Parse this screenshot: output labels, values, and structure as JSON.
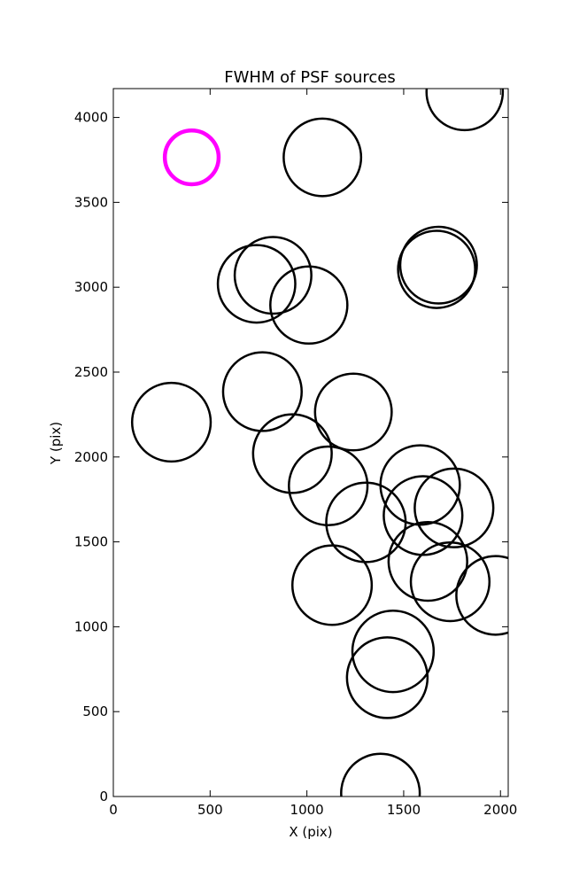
{
  "chart_data": {
    "type": "scatter",
    "title": "FWHM of PSF sources",
    "xlabel": "X (pix)",
    "ylabel": "Y (pix)",
    "xlim": [
      0,
      2040
    ],
    "ylim": [
      0,
      4170
    ],
    "xticks": [
      0,
      500,
      1000,
      1500,
      2000
    ],
    "yticks": [
      0,
      500,
      1000,
      1500,
      2000,
      2500,
      3000,
      3500,
      4000
    ],
    "grid": false,
    "highlight_color": "#ff00ff",
    "marker_color": "#000000",
    "reference_source": {
      "x": 405,
      "y": 3765,
      "radius_x": 139
    },
    "sources": [
      {
        "x": 1815,
        "y": 4150,
        "radius_x": 197
      },
      {
        "x": 1080,
        "y": 3765,
        "radius_x": 200
      },
      {
        "x": 1670,
        "y": 3105,
        "radius_x": 199
      },
      {
        "x": 1680,
        "y": 3130,
        "radius_x": 198
      },
      {
        "x": 825,
        "y": 3070,
        "radius_x": 198
      },
      {
        "x": 740,
        "y": 3020,
        "radius_x": 200
      },
      {
        "x": 1010,
        "y": 2895,
        "radius_x": 199
      },
      {
        "x": 770,
        "y": 2385,
        "radius_x": 203
      },
      {
        "x": 300,
        "y": 2205,
        "radius_x": 203
      },
      {
        "x": 1240,
        "y": 2265,
        "radius_x": 198
      },
      {
        "x": 925,
        "y": 2020,
        "radius_x": 203
      },
      {
        "x": 1110,
        "y": 1830,
        "radius_x": 203
      },
      {
        "x": 1585,
        "y": 1835,
        "radius_x": 205
      },
      {
        "x": 1600,
        "y": 1655,
        "radius_x": 203
      },
      {
        "x": 1760,
        "y": 1700,
        "radius_x": 203
      },
      {
        "x": 1305,
        "y": 1615,
        "radius_x": 205
      },
      {
        "x": 1625,
        "y": 1385,
        "radius_x": 203
      },
      {
        "x": 1740,
        "y": 1265,
        "radius_x": 203
      },
      {
        "x": 1975,
        "y": 1185,
        "radius_x": 203
      },
      {
        "x": 1130,
        "y": 1245,
        "radius_x": 205
      },
      {
        "x": 1445,
        "y": 855,
        "radius_x": 210
      },
      {
        "x": 1415,
        "y": 700,
        "radius_x": 208
      },
      {
        "x": 1380,
        "y": 20,
        "radius_x": 203
      }
    ]
  }
}
